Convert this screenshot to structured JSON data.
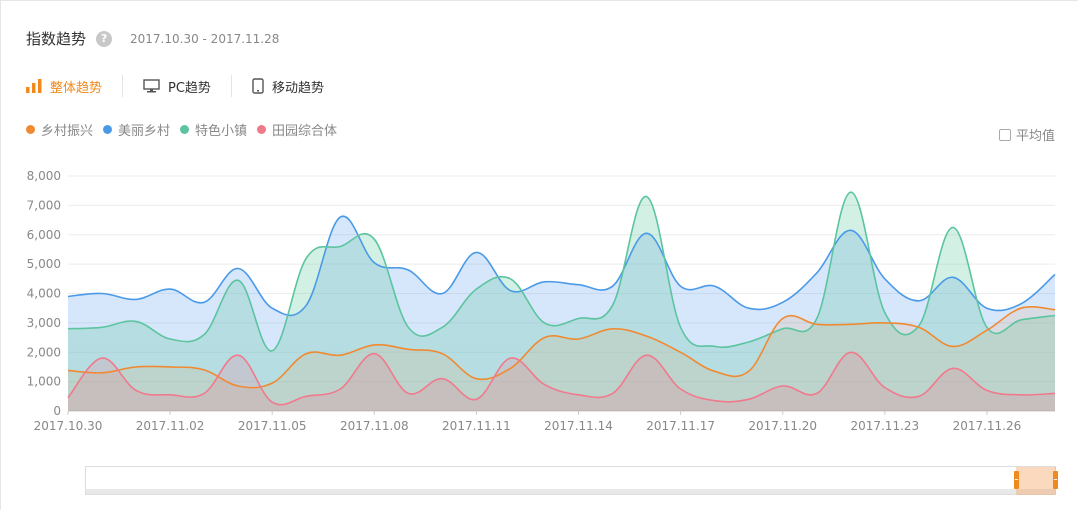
{
  "header": {
    "title": "指数趋势",
    "help_glyph": "?",
    "date_range": "2017.10.30 - 2017.11.28"
  },
  "tabs": [
    {
      "label": "整体趋势",
      "icon": "bar-chart-icon",
      "active": true
    },
    {
      "label": "PC趋势",
      "icon": "monitor-icon",
      "active": false
    },
    {
      "label": "移动趋势",
      "icon": "mobile-icon",
      "active": false
    }
  ],
  "avg_toggle": {
    "label": "平均值",
    "checked": false
  },
  "colors": {
    "accent": "#f08a1c"
  },
  "chart_data": {
    "type": "area",
    "x": [
      "2017.10.30",
      "2017.10.31",
      "2017.11.01",
      "2017.11.02",
      "2017.11.03",
      "2017.11.04",
      "2017.11.05",
      "2017.11.06",
      "2017.11.07",
      "2017.11.08",
      "2017.11.09",
      "2017.11.10",
      "2017.11.11",
      "2017.11.12",
      "2017.11.13",
      "2017.11.14",
      "2017.11.15",
      "2017.11.16",
      "2017.11.17",
      "2017.11.18",
      "2017.11.19",
      "2017.11.20",
      "2017.11.21",
      "2017.11.22",
      "2017.11.23",
      "2017.11.24",
      "2017.11.25",
      "2017.11.26",
      "2017.11.27",
      "2017.11.28"
    ],
    "x_tick_labels": [
      "2017.10.30",
      "2017.11.02",
      "2017.11.05",
      "2017.11.08",
      "2017.11.11",
      "2017.11.14",
      "2017.11.17",
      "2017.11.20",
      "2017.11.23",
      "2017.11.26"
    ],
    "y_tick_labels": [
      "0",
      "1,000",
      "2,000",
      "3,000",
      "4,000",
      "5,000",
      "6,000",
      "7,000",
      "8,000"
    ],
    "ylim": [
      0,
      8000
    ],
    "grid": true,
    "legend_position": "top-left",
    "series": [
      {
        "name": "美丽乡村",
        "color": "#4a9ae8",
        "fill": "rgba(90,155,240,0.25)",
        "values": [
          3900,
          4000,
          3800,
          4150,
          3700,
          4850,
          3500,
          3600,
          6600,
          5050,
          4800,
          4000,
          5400,
          4100,
          4400,
          4300,
          4250,
          6050,
          4250,
          4250,
          3500,
          3700,
          4700,
          6150,
          4500,
          3750,
          4550,
          3500,
          3650,
          4650
        ]
      },
      {
        "name": "特色小镇",
        "color": "#5cc49e",
        "fill": "rgba(110,205,170,0.30)",
        "values": [
          2800,
          2850,
          3050,
          2450,
          2600,
          4450,
          2050,
          5200,
          5600,
          5850,
          2850,
          2850,
          4150,
          4500,
          3000,
          3150,
          3600,
          7300,
          2850,
          2200,
          2350,
          2800,
          3150,
          7450,
          3350,
          2900,
          6250,
          2850,
          3100,
          3250
        ]
      },
      {
        "name": "乡村振兴",
        "color": "#f08a32",
        "fill": "rgba(240,138,50,0.12)",
        "values": [
          1380,
          1300,
          1500,
          1500,
          1400,
          850,
          950,
          1950,
          1900,
          2250,
          2100,
          1950,
          1100,
          1450,
          2500,
          2450,
          2800,
          2550,
          2000,
          1350,
          1350,
          3150,
          2950,
          2950,
          3000,
          2850,
          2200,
          2750,
          3500,
          3450
        ]
      },
      {
        "name": "田园综合体",
        "color": "#f07a8c",
        "fill": "rgba(240,120,140,0.22)",
        "values": [
          450,
          1800,
          700,
          550,
          600,
          1900,
          300,
          500,
          750,
          1950,
          600,
          1100,
          400,
          1800,
          900,
          550,
          600,
          1900,
          750,
          350,
          400,
          850,
          600,
          2000,
          800,
          500,
          1450,
          700,
          550,
          600
        ]
      }
    ],
    "legend_order": [
      "乡村振兴",
      "美丽乡村",
      "特色小镇",
      "田园综合体"
    ]
  },
  "slider": {
    "label": "range-slider"
  }
}
